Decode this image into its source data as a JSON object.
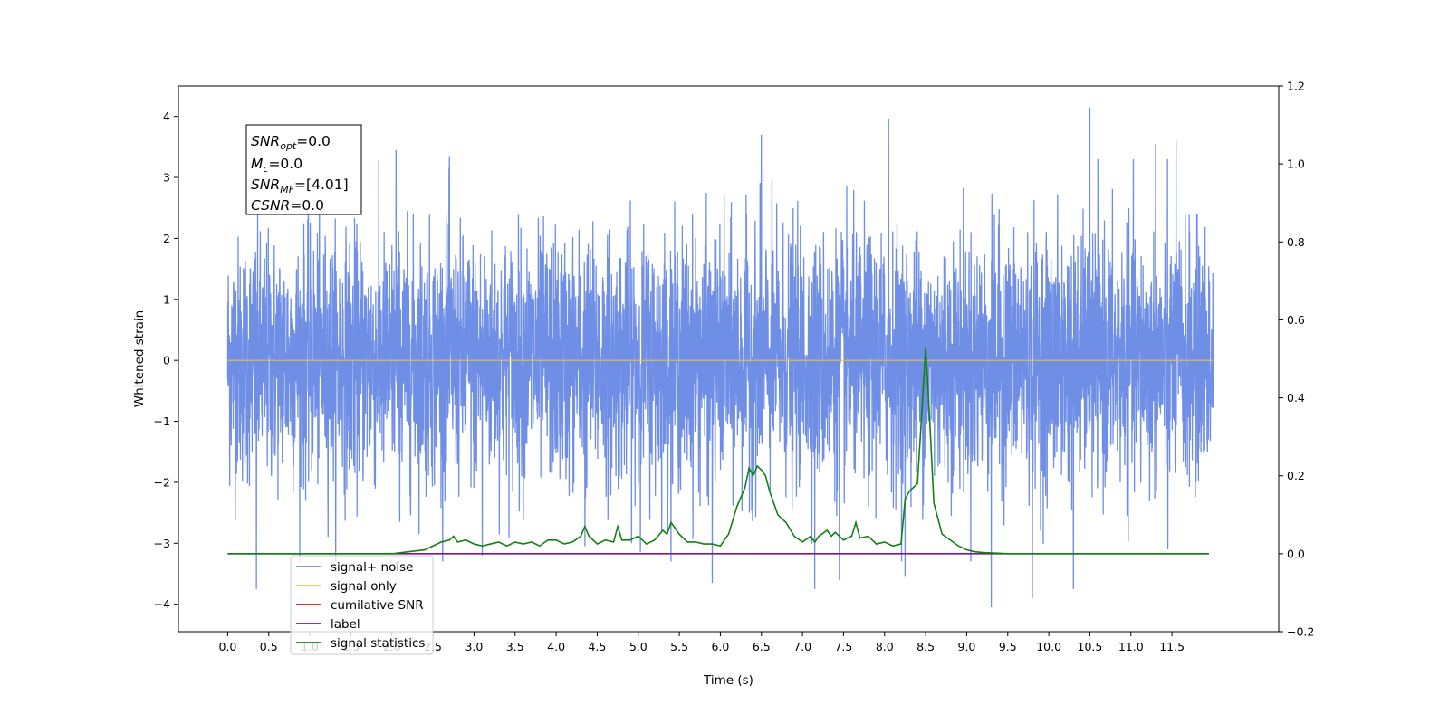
{
  "chart_data": {
    "type": "line",
    "title": "",
    "xlabel": "Time (s)",
    "ylabel": "Whitened strain",
    "xlim": [
      -0.6,
      12.8
    ],
    "ylim_left": [
      -4.45,
      4.5
    ],
    "ylim_right": [
      -0.2,
      1.2
    ],
    "x_ticks": [
      0.0,
      0.5,
      1.0,
      1.5,
      2.0,
      2.5,
      3.0,
      3.5,
      4.0,
      4.5,
      5.0,
      5.5,
      6.0,
      6.5,
      7.0,
      7.5,
      8.0,
      8.5,
      9.0,
      9.5,
      10.0,
      10.5,
      11.0,
      11.5
    ],
    "x_tick_labels": [
      "0.0",
      "0.5",
      "1.0",
      "1.5",
      "2.0",
      "2.5",
      "3.0",
      "3.5",
      "4.0",
      "4.5",
      "5.0",
      "5.5",
      "6.0",
      "6.5",
      "7.0",
      "7.5",
      "8.0",
      "8.5",
      "9.0",
      "9.5",
      "10.0",
      "10.5",
      "11.0",
      "11.5"
    ],
    "y_left_ticks": [
      -4,
      -3,
      -2,
      -1,
      0,
      1,
      2,
      3,
      4
    ],
    "y_left_tick_labels": [
      "−4",
      "−3",
      "−2",
      "−1",
      "0",
      "1",
      "2",
      "3",
      "4"
    ],
    "y_right_ticks": [
      -0.2,
      0.0,
      0.2,
      0.4,
      0.6,
      0.8,
      1.0,
      1.2
    ],
    "y_right_tick_labels": [
      "−0.2",
      "0.0",
      "0.2",
      "0.4",
      "0.6",
      "0.8",
      "1.0",
      "1.2"
    ],
    "grid": false,
    "legend_position": "lower-left",
    "series": [
      {
        "name": "signal+ noise",
        "axis": "left",
        "color": "#6f8ee6",
        "kind": "noise",
        "x_start": 0.0,
        "x_end": 12.0,
        "amplitude_range": [
          -4.05,
          4.15
        ],
        "spikes": [
          {
            "x": 0.35,
            "y": -3.75
          },
          {
            "x": 2.05,
            "y": 3.45
          },
          {
            "x": 4.35,
            "y": -3.05
          },
          {
            "x": 5.9,
            "y": -3.65
          },
          {
            "x": 6.5,
            "y": 3.7
          },
          {
            "x": 7.15,
            "y": -3.75
          },
          {
            "x": 7.45,
            "y": -3.6
          },
          {
            "x": 8.05,
            "y": 3.95
          },
          {
            "x": 8.25,
            "y": -3.55
          },
          {
            "x": 9.3,
            "y": -4.05
          },
          {
            "x": 9.8,
            "y": -3.9
          },
          {
            "x": 10.3,
            "y": -3.75
          },
          {
            "x": 10.5,
            "y": 4.15
          },
          {
            "x": 11.3,
            "y": 3.55
          },
          {
            "x": 11.55,
            "y": 3.6
          },
          {
            "x": 11.45,
            "y": -3.1
          },
          {
            "x": 3.1,
            "y": -3.2
          },
          {
            "x": 2.7,
            "y": 3.35
          }
        ]
      },
      {
        "name": "signal only",
        "axis": "left",
        "color": "#f5b94f",
        "x": [
          0.0,
          12.0
        ],
        "y": [
          0.0,
          0.0
        ]
      },
      {
        "name": "cumilative SNR",
        "axis": "right",
        "color": "#e8150f",
        "x": [],
        "y": []
      },
      {
        "name": "label",
        "axis": "right",
        "color": "#7a1a85",
        "x": [
          0.0,
          11.95
        ],
        "y": [
          0.0,
          0.0
        ]
      },
      {
        "name": "signal statistics",
        "axis": "right",
        "color": "#138013",
        "x": [
          0.0,
          0.5,
          1.0,
          1.5,
          2.0,
          2.2,
          2.4,
          2.5,
          2.6,
          2.7,
          2.75,
          2.8,
          2.9,
          3.0,
          3.1,
          3.2,
          3.3,
          3.4,
          3.5,
          3.6,
          3.7,
          3.8,
          3.9,
          4.0,
          4.1,
          4.2,
          4.3,
          4.35,
          4.4,
          4.5,
          4.6,
          4.7,
          4.75,
          4.8,
          4.9,
          5.0,
          5.1,
          5.2,
          5.3,
          5.35,
          5.4,
          5.5,
          5.6,
          5.7,
          5.8,
          5.9,
          6.0,
          6.1,
          6.2,
          6.3,
          6.35,
          6.4,
          6.45,
          6.5,
          6.55,
          6.6,
          6.7,
          6.8,
          6.9,
          7.0,
          7.1,
          7.15,
          7.2,
          7.3,
          7.35,
          7.4,
          7.5,
          7.6,
          7.65,
          7.7,
          7.8,
          7.9,
          8.0,
          8.1,
          8.2,
          8.25,
          8.3,
          8.4,
          8.45,
          8.5,
          8.55,
          8.6,
          8.65,
          8.7,
          8.8,
          8.9,
          9.0,
          9.1,
          9.2,
          9.5,
          10.0,
          11.0,
          11.95
        ],
        "y": [
          0.0,
          0.0,
          0.0,
          0.0,
          0.0,
          0.005,
          0.01,
          0.02,
          0.03,
          0.035,
          0.045,
          0.03,
          0.035,
          0.025,
          0.02,
          0.025,
          0.03,
          0.02,
          0.03,
          0.025,
          0.03,
          0.02,
          0.035,
          0.035,
          0.025,
          0.03,
          0.045,
          0.07,
          0.045,
          0.025,
          0.035,
          0.03,
          0.07,
          0.035,
          0.035,
          0.045,
          0.025,
          0.035,
          0.06,
          0.05,
          0.08,
          0.05,
          0.03,
          0.03,
          0.025,
          0.025,
          0.02,
          0.05,
          0.12,
          0.17,
          0.22,
          0.2,
          0.225,
          0.215,
          0.2,
          0.16,
          0.1,
          0.08,
          0.045,
          0.03,
          0.045,
          0.03,
          0.045,
          0.06,
          0.045,
          0.055,
          0.035,
          0.045,
          0.08,
          0.04,
          0.045,
          0.025,
          0.03,
          0.02,
          0.025,
          0.14,
          0.16,
          0.18,
          0.35,
          0.53,
          0.34,
          0.13,
          0.09,
          0.05,
          0.035,
          0.02,
          0.01,
          0.005,
          0.003,
          0.0,
          0.0,
          0.0,
          0.0
        ]
      }
    ],
    "info_box": {
      "lines": [
        {
          "main": "SNR",
          "sub": "opt",
          "rest": "=0.0"
        },
        {
          "main": "M",
          "sub": "c",
          "rest": "=0.0"
        },
        {
          "main": "SNR",
          "sub": "MF",
          "rest": "=[4.01]"
        },
        {
          "main": "CSNR",
          "sub": "",
          "rest": "=0.0"
        }
      ]
    }
  }
}
